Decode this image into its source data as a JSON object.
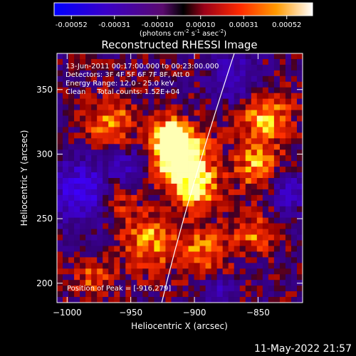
{
  "colorbar": {
    "tick_labels": [
      "-0.00052",
      "-0.00031",
      "-0.00010",
      "0.00010",
      "0.00031",
      "0.00052"
    ],
    "units_prefix": "(photons cm",
    "units_exp1": "-2",
    "units_mid": " s",
    "units_exp2": "-1",
    "units_mid2": " asec",
    "units_exp3": "-2",
    "units_suffix": ")"
  },
  "image": {
    "title": "Reconstructed RHESSI Image",
    "annotations": [
      "13-Jun-2011 00:17:00.000 to 00:23:00.000",
      "Detectors: 3F 4F 5F 6F 7F 8F, Att 0",
      "Energy Range: 12.0 - 25.0 keV",
      "Clean     Total counts: 1.52E+04"
    ],
    "peak_label": "Position of Peak = [-916,279]"
  },
  "axes": {
    "xlabel": "Heliocentric X (arcsec)",
    "ylabel": "Heliocentric Y (arcsec)",
    "x_ticks": [
      -1000,
      -950,
      -900,
      -850
    ],
    "y_ticks": [
      200,
      250,
      300,
      350
    ],
    "x_tick_labels": [
      "−1000",
      "−950",
      "−900",
      "−850"
    ],
    "y_tick_labels": [
      "200",
      "250",
      "300",
      "350"
    ],
    "xlim": [
      -1008,
      -815
    ],
    "ylim": [
      185,
      378
    ]
  },
  "footer": {
    "timestamp": "11-May-2022 21:57"
  },
  "colors": {
    "background": "#000000",
    "foreground": "#ffffff"
  }
}
